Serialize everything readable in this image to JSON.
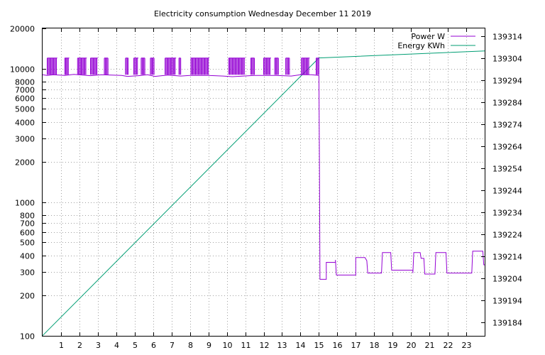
{
  "chart_data": {
    "type": "line",
    "title": "Electricity consumption Wednesday December 11 2019",
    "xlabel": "",
    "ylabel": "",
    "y2label": "",
    "grid": true,
    "legend_position": "top-right",
    "x_axis": {
      "range": [
        0,
        24
      ],
      "ticks": [
        1,
        2,
        3,
        4,
        5,
        6,
        7,
        8,
        9,
        10,
        11,
        12,
        13,
        14,
        15,
        16,
        17,
        18,
        19,
        20,
        21,
        22,
        23
      ]
    },
    "y_axis": {
      "scale": "log",
      "range": [
        100,
        20000
      ],
      "ticks": [
        100,
        200,
        300,
        400,
        500,
        600,
        700,
        800,
        1000,
        2000,
        3000,
        4000,
        5000,
        6000,
        7000,
        8000,
        10000,
        20000
      ]
    },
    "y2_axis": {
      "scale": "linear",
      "range": [
        139177.9,
        139317.4
      ],
      "ticks": [
        139184,
        139194,
        139204,
        139214,
        139224,
        139234,
        139244,
        139254,
        139264,
        139274,
        139284,
        139294,
        139304,
        139314
      ]
    },
    "series": [
      {
        "name": "Power W",
        "axis": "y",
        "color": "#9400d3",
        "points": [
          [
            0,
            9000
          ],
          [
            0.25,
            8900
          ],
          [
            0.6,
            9000
          ],
          [
            1.2,
            8900
          ],
          [
            1.7,
            9050
          ],
          [
            2.6,
            8850
          ],
          [
            3.2,
            9000
          ],
          [
            4.3,
            8900
          ],
          [
            4.6,
            8750
          ],
          [
            5.2,
            8850
          ],
          [
            5.7,
            9000
          ],
          [
            6.1,
            8750
          ],
          [
            6.8,
            8950
          ],
          [
            7.5,
            8800
          ],
          [
            8.0,
            8900
          ],
          [
            9.0,
            8900
          ],
          [
            9.8,
            8800
          ],
          [
            10.3,
            8700
          ],
          [
            11.5,
            8900
          ],
          [
            12.7,
            8900
          ],
          [
            13.5,
            8800
          ],
          [
            14.0,
            9000
          ],
          [
            14.6,
            9000
          ],
          [
            15.0,
            8900
          ],
          [
            15.03,
            1800
          ],
          [
            15.06,
            265
          ],
          [
            15.4,
            265
          ],
          [
            15.4,
            355
          ],
          [
            15.9,
            355
          ],
          [
            15.9,
            370
          ],
          [
            15.95,
            285
          ],
          [
            17.0,
            285
          ],
          [
            17.0,
            385
          ],
          [
            17.5,
            385
          ],
          [
            17.6,
            365
          ],
          [
            17.65,
            295
          ],
          [
            18.4,
            295
          ],
          [
            18.45,
            420
          ],
          [
            18.9,
            420
          ],
          [
            18.95,
            310
          ],
          [
            20.1,
            310
          ],
          [
            20.1,
            295
          ],
          [
            20.15,
            420
          ],
          [
            20.5,
            420
          ],
          [
            20.55,
            380
          ],
          [
            20.7,
            380
          ],
          [
            20.75,
            290
          ],
          [
            21.3,
            290
          ],
          [
            21.35,
            420
          ],
          [
            21.9,
            420
          ],
          [
            21.95,
            295
          ],
          [
            23.3,
            295
          ],
          [
            23.35,
            430
          ],
          [
            23.9,
            430
          ],
          [
            23.95,
            340
          ],
          [
            24.0,
            340
          ]
        ],
        "spike_bursts": [
          [
            0.25,
            0.8
          ],
          [
            1.2,
            1.45
          ],
          [
            1.9,
            2.4
          ],
          [
            2.6,
            3.0
          ],
          [
            3.35,
            3.55
          ],
          [
            4.5,
            4.65
          ],
          [
            4.95,
            5.2
          ],
          [
            5.35,
            5.55
          ],
          [
            5.85,
            6.05
          ],
          [
            6.65,
            7.25
          ],
          [
            7.4,
            7.5
          ],
          [
            8.05,
            9.05
          ],
          [
            10.1,
            11.0
          ],
          [
            11.3,
            11.5
          ],
          [
            12.0,
            12.4
          ],
          [
            12.6,
            12.8
          ],
          [
            13.2,
            13.4
          ],
          [
            14.05,
            14.5
          ],
          [
            14.85,
            15.0
          ]
        ],
        "spike_value": 12000
      },
      {
        "name": "Energy KWh",
        "axis": "y2",
        "color": "#009e73",
        "points": [
          [
            0,
            139178
          ],
          [
            15.0,
            139304
          ],
          [
            24.0,
            139307.2
          ]
        ]
      }
    ]
  }
}
